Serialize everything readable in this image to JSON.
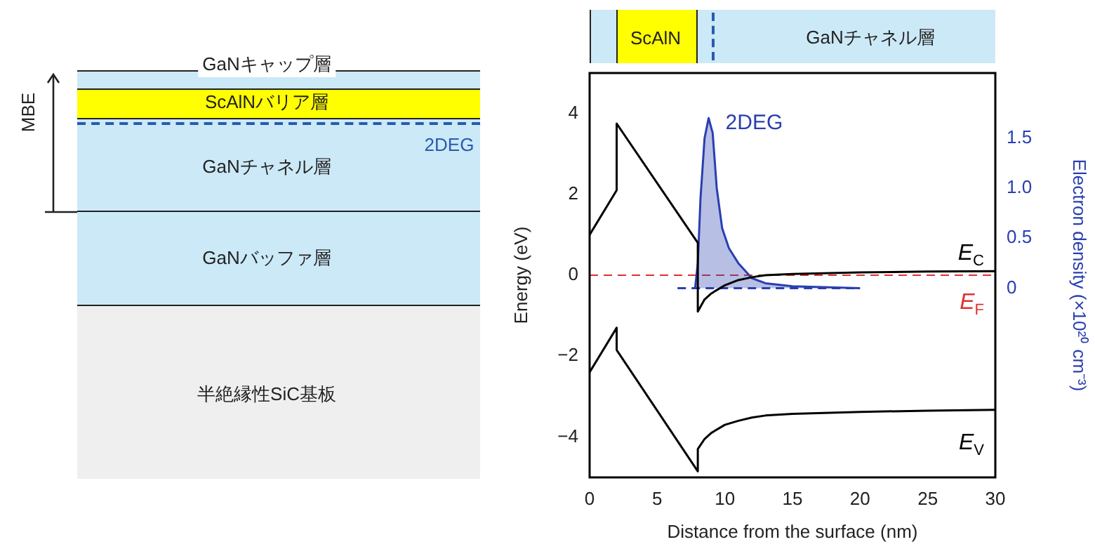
{
  "chart_data": {
    "type": "line",
    "xlabel": "Distance from the surface (nm)",
    "ylabel": "Energy (eV)",
    "y2label": "Electron density (×10²⁰ cm⁻³)",
    "xlim": [
      0,
      30
    ],
    "xticks": [
      0,
      5,
      10,
      15,
      20,
      25,
      30
    ],
    "ylim": [
      -5,
      5
    ],
    "yticks": [
      {
        "value": -4,
        "label": "−4"
      },
      {
        "value": -2,
        "label": "−2"
      },
      0,
      2,
      4
    ],
    "y2lim": [
      -1.89,
      2.15
    ],
    "y2ticks": [
      0,
      0.5,
      {
        "value": 1,
        "label": "1.0"
      },
      1.5
    ],
    "grid": false,
    "legend": false,
    "marker": "none",
    "series": [
      {
        "name": "E$_{C}$",
        "color": "#000000",
        "x": [
          0,
          2,
          2,
          8,
          8,
          8.5,
          9,
          10,
          11,
          12,
          13,
          15,
          20,
          25,
          30
        ],
        "values": [
          1.0,
          2.1,
          3.75,
          0.8,
          -0.9,
          -0.6,
          -0.45,
          -0.25,
          -0.12,
          -0.05,
          0.0,
          0.03,
          0.07,
          0.09,
          0.1
        ]
      },
      {
        "name": "E$_{V}$",
        "color": "#000000",
        "x": [
          0,
          2,
          2,
          8,
          8,
          8.5,
          9,
          10,
          11,
          12,
          13,
          15,
          20,
          25,
          30
        ],
        "values": [
          -2.4,
          -1.3,
          -1.85,
          -4.85,
          -4.3,
          -4.05,
          -3.9,
          -3.7,
          -3.6,
          -3.52,
          -3.47,
          -3.43,
          -3.38,
          -3.35,
          -3.33
        ]
      },
      {
        "name": "2DEG",
        "type": "area",
        "axis": "y2",
        "color": "#2a3fb0",
        "x": [
          7.8,
          8.0,
          8.2,
          8.5,
          8.8,
          9.1,
          9.4,
          9.8,
          10.3,
          11,
          12,
          13,
          15,
          20
        ],
        "values": [
          0,
          0.25,
          0.9,
          1.5,
          1.7,
          1.55,
          1.0,
          0.6,
          0.4,
          0.25,
          0.1,
          0.05,
          0.02,
          0
        ]
      },
      {
        "axis": "y2",
        "line_style": "dashed",
        "color": "#2a3fb0",
        "x": [
          6.5,
          20
        ],
        "values": [
          0,
          0
        ]
      }
    ],
    "ref_lines": [
      {
        "axis": "y",
        "value": 0,
        "label": "E$_{F}$",
        "color": "#e03030",
        "line_style": "dashed"
      }
    ],
    "annotations": [
      "GaNキャップ層",
      "ScAlNバリア層",
      "2DEG",
      "GaNチャネル層",
      "GaNバッファ層",
      "半絶縁性SiC基板",
      "MBE",
      "ScAlN",
      "GaNチャネル層"
    ]
  }
}
